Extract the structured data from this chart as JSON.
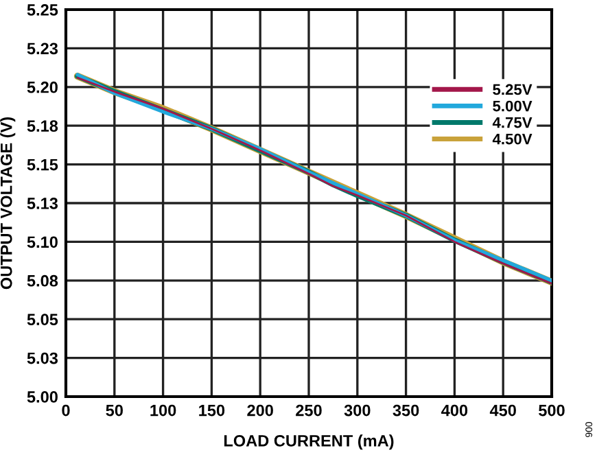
{
  "chart_data": {
    "type": "line",
    "xlabel": "LOAD CURRENT (mA)",
    "ylabel": "OUTPUT VOLTAGE (V)",
    "x": [
      12,
      50,
      100,
      150,
      200,
      250,
      275,
      300,
      350,
      400,
      450,
      500
    ],
    "series": [
      {
        "name": "4.50V",
        "color": "#c9a23a",
        "values": [
          5.207,
          5.197,
          5.186,
          5.173,
          5.159,
          5.145,
          5.138,
          5.131,
          5.117,
          5.102,
          5.087,
          5.074
        ]
      },
      {
        "name": "4.75V",
        "color": "#00796b",
        "values": [
          5.207,
          5.197,
          5.185,
          5.173,
          5.159,
          5.145,
          5.137,
          5.13,
          5.117,
          5.101,
          5.087,
          5.074
        ]
      },
      {
        "name": "5.00V",
        "color": "#22a8dc",
        "values": [
          5.208,
          5.196,
          5.184,
          5.173,
          5.16,
          5.145,
          5.138,
          5.131,
          5.117,
          5.101,
          5.088,
          5.075
        ]
      },
      {
        "name": "5.25V",
        "color": "#a3174a",
        "values": [
          5.206,
          5.197,
          5.186,
          5.173,
          5.159,
          5.144,
          5.136,
          5.13,
          5.117,
          5.1,
          5.086,
          5.073
        ]
      }
    ],
    "xlim": [
      0,
      500
    ],
    "xticks": [
      0,
      50,
      100,
      150,
      200,
      250,
      300,
      350,
      400,
      450,
      500
    ],
    "ylim": [
      5.0,
      5.25
    ],
    "yticks": [
      {
        "value": 5.0,
        "label": "5.00"
      },
      {
        "value": 5.025,
        "label": "5.03"
      },
      {
        "value": 5.05,
        "label": "5.05"
      },
      {
        "value": 5.075,
        "label": "5.08"
      },
      {
        "value": 5.1,
        "label": "5.10"
      },
      {
        "value": 5.125,
        "label": "5.13"
      },
      {
        "value": 5.15,
        "label": "5.15"
      },
      {
        "value": 5.175,
        "label": "5.18"
      },
      {
        "value": 5.2,
        "label": "5.20"
      },
      {
        "value": 5.225,
        "label": "5.23"
      },
      {
        "value": 5.25,
        "label": "5.25"
      }
    ],
    "grid": true,
    "legend": "top right",
    "line_style": "solid",
    "marker": "none",
    "annotations": [
      "006"
    ]
  }
}
